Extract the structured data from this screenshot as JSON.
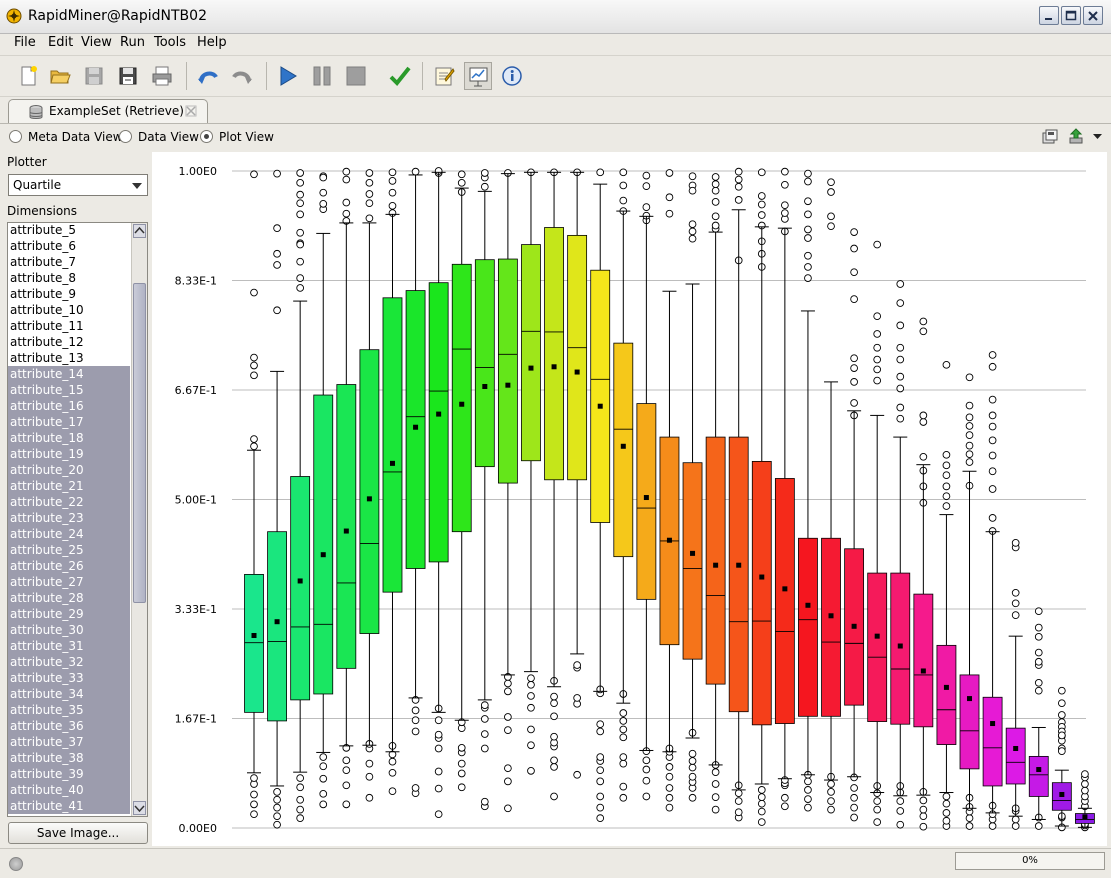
{
  "window": {
    "title": "RapidMiner@RapidNTB02"
  },
  "menu": [
    "File",
    "Edit",
    "View",
    "Run",
    "Tools",
    "Help"
  ],
  "toolbar": {
    "icons": [
      "new-process-icon",
      "open-icon",
      "save-icon",
      "save-as-icon",
      "print-icon",
      "undo-icon",
      "redo-icon",
      "run-icon",
      "pause-icon",
      "stop-icon",
      "validate-icon",
      "design-perspective-icon",
      "result-perspective-icon",
      "info-icon"
    ]
  },
  "tab": {
    "label": "ExampleSet (Retrieve)"
  },
  "views": [
    {
      "label": "Meta Data View",
      "selected": false
    },
    {
      "label": "Data View",
      "selected": false
    },
    {
      "label": "Plot View",
      "selected": true
    }
  ],
  "left": {
    "plotter_label": "Plotter",
    "plotter_value": "Quartile",
    "dimensions_label": "Dimensions",
    "dimensions": [
      {
        "name": "attribute_5",
        "selected": false
      },
      {
        "name": "attribute_6",
        "selected": false
      },
      {
        "name": "attribute_7",
        "selected": false
      },
      {
        "name": "attribute_8",
        "selected": false
      },
      {
        "name": "attribute_9",
        "selected": false
      },
      {
        "name": "attribute_10",
        "selected": false
      },
      {
        "name": "attribute_11",
        "selected": false
      },
      {
        "name": "attribute_12",
        "selected": false
      },
      {
        "name": "attribute_13",
        "selected": false
      },
      {
        "name": "attribute_14",
        "selected": true
      },
      {
        "name": "attribute_15",
        "selected": true
      },
      {
        "name": "attribute_16",
        "selected": true
      },
      {
        "name": "attribute_17",
        "selected": true
      },
      {
        "name": "attribute_18",
        "selected": true
      },
      {
        "name": "attribute_19",
        "selected": true
      },
      {
        "name": "attribute_20",
        "selected": true
      },
      {
        "name": "attribute_21",
        "selected": true
      },
      {
        "name": "attribute_22",
        "selected": true
      },
      {
        "name": "attribute_23",
        "selected": true
      },
      {
        "name": "attribute_24",
        "selected": true
      },
      {
        "name": "attribute_25",
        "selected": true
      },
      {
        "name": "attribute_26",
        "selected": true
      },
      {
        "name": "attribute_27",
        "selected": true
      },
      {
        "name": "attribute_28",
        "selected": true
      },
      {
        "name": "attribute_29",
        "selected": true
      },
      {
        "name": "attribute_30",
        "selected": true
      },
      {
        "name": "attribute_31",
        "selected": true
      },
      {
        "name": "attribute_32",
        "selected": true
      },
      {
        "name": "attribute_33",
        "selected": true
      },
      {
        "name": "attribute_34",
        "selected": true
      },
      {
        "name": "attribute_35",
        "selected": true
      },
      {
        "name": "attribute_36",
        "selected": true
      },
      {
        "name": "attribute_37",
        "selected": true
      },
      {
        "name": "attribute_38",
        "selected": true
      },
      {
        "name": "attribute_39",
        "selected": true
      },
      {
        "name": "attribute_40",
        "selected": true
      },
      {
        "name": "attribute_41",
        "selected": true
      }
    ],
    "save_button": "Save Image..."
  },
  "status": {
    "progress_text": "0%",
    "progress": 0
  },
  "chart_data": {
    "type": "box",
    "ytick_labels": [
      "1.00E0",
      "8.33E-1",
      "6.67E-1",
      "5.00E-1",
      "3.33E-1",
      "1.67E-1",
      "0.00E0"
    ],
    "ylim": [
      0,
      1
    ],
    "grid": true,
    "boxes": [
      {
        "q1": 0.176,
        "median": 0.282,
        "q3": 0.386,
        "mean": 0.293,
        "wlo": 0.084,
        "whi": 0.575,
        "color": "#1ae68c",
        "out": [
          0.021,
          0.036,
          0.051,
          0.067,
          0.076,
          0.581,
          0.592,
          0.689,
          0.704,
          0.716,
          0.815,
          0.995
        ]
      },
      {
        "q1": 0.163,
        "median": 0.284,
        "q3": 0.451,
        "mean": 0.314,
        "wlo": 0.064,
        "whi": 0.695,
        "color": "#1ae67e",
        "out": [
          0.005,
          0.018,
          0.031,
          0.043,
          0.055,
          0.788,
          0.857,
          0.874,
          0.913,
          0.996
        ]
      },
      {
        "q1": 0.195,
        "median": 0.306,
        "q3": 0.535,
        "mean": 0.376,
        "wlo": 0.085,
        "whi": 0.802,
        "color": "#1ae670",
        "out": [
          0.015,
          0.028,
          0.043,
          0.062,
          0.076,
          0.89,
          0.822,
          0.837,
          0.862,
          0.888,
          0.906,
          0.934,
          0.951,
          0.964,
          0.982,
          0.997
        ]
      },
      {
        "q1": 0.204,
        "median": 0.31,
        "q3": 0.659,
        "mean": 0.416,
        "wlo": 0.115,
        "whi": 0.905,
        "color": "#1ae662",
        "out": [
          0.036,
          0.052,
          0.075,
          0.094,
          0.108,
          0.942,
          0.95,
          0.967,
          0.992,
          0.99
        ]
      },
      {
        "q1": 0.243,
        "median": 0.373,
        "q3": 0.675,
        "mean": 0.452,
        "wlo": 0.125,
        "whi": 0.921,
        "color": "#1ae654",
        "out": [
          0.036,
          0.065,
          0.088,
          0.103,
          0.122,
          0.924,
          0.935,
          0.952,
          0.987,
          0.999
        ]
      },
      {
        "q1": 0.296,
        "median": 0.433,
        "q3": 0.728,
        "mean": 0.501,
        "wlo": 0.126,
        "whi": 0.921,
        "color": "#1ae646",
        "out": [
          0.046,
          0.078,
          0.098,
          0.121,
          0.128,
          0.928,
          0.951,
          0.965,
          0.982,
          0.997
        ]
      },
      {
        "q1": 0.359,
        "median": 0.542,
        "q3": 0.807,
        "mean": 0.555,
        "wlo": 0.116,
        "whi": 0.934,
        "color": "#1ae638",
        "out": [
          0.056,
          0.084,
          0.101,
          0.112,
          0.125,
          0.936,
          0.947,
          0.967,
          0.985,
          0.998
        ]
      },
      {
        "q1": 0.395,
        "median": 0.626,
        "q3": 0.818,
        "mean": 0.61,
        "wlo": 0.198,
        "whi": 0.994,
        "color": "#1ae62a",
        "out": [
          0.053,
          0.061,
          0.147,
          0.164,
          0.179,
          0.195,
          0.999
        ]
      },
      {
        "q1": 0.405,
        "median": 0.665,
        "q3": 0.83,
        "mean": 0.63,
        "wlo": 0.176,
        "whi": 0.998,
        "color": "#1ae61c",
        "out": [
          0.021,
          0.06,
          0.086,
          0.121,
          0.137,
          0.142,
          0.164,
          0.182,
          0.997,
          1.0
        ]
      },
      {
        "q1": 0.451,
        "median": 0.729,
        "q3": 0.858,
        "mean": 0.645,
        "wlo": 0.164,
        "whi": 0.974,
        "color": "#2ee61a",
        "out": [
          0.062,
          0.083,
          0.098,
          0.115,
          0.122,
          0.152,
          0.161,
          0.968,
          0.982,
          0.995
        ]
      },
      {
        "q1": 0.55,
        "median": 0.701,
        "q3": 0.865,
        "mean": 0.672,
        "wlo": 0.195,
        "whi": 0.969,
        "color": "#49e61a",
        "out": [
          0.033,
          0.04,
          0.121,
          0.143,
          0.166,
          0.183,
          0.187,
          0.976,
          0.99,
          0.997
        ]
      },
      {
        "q1": 0.525,
        "median": 0.721,
        "q3": 0.866,
        "mean": 0.674,
        "wlo": 0.233,
        "whi": 0.996,
        "color": "#64e61a",
        "out": [
          0.03,
          0.071,
          0.091,
          0.149,
          0.169,
          0.208,
          0.22,
          0.23,
          0.997
        ]
      },
      {
        "q1": 0.559,
        "median": 0.756,
        "q3": 0.888,
        "mean": 0.7,
        "wlo": 0.238,
        "whi": 0.998,
        "color": "#9ee61a",
        "out": [
          0.087,
          0.126,
          0.15,
          0.183,
          0.201,
          0.218,
          0.228,
          0.998
        ]
      },
      {
        "q1": 0.53,
        "median": 0.755,
        "q3": 0.914,
        "mean": 0.702,
        "wlo": 0.215,
        "whi": 0.998,
        "color": "#c4e61a",
        "out": [
          0.048,
          0.093,
          0.103,
          0.124,
          0.13,
          0.139,
          0.17,
          0.19,
          0.2,
          0.224,
          0.998
        ]
      },
      {
        "q1": 0.53,
        "median": 0.731,
        "q3": 0.902,
        "mean": 0.694,
        "wlo": 0.265,
        "whi": 0.998,
        "color": "#e0e61a",
        "out": [
          0.081,
          0.189,
          0.198,
          0.244,
          0.248,
          0.998
        ]
      },
      {
        "q1": 0.465,
        "median": 0.683,
        "q3": 0.849,
        "mean": 0.642,
        "wlo": 0.208,
        "whi": 0.98,
        "color": "#f5e61a",
        "out": [
          0.015,
          0.031,
          0.048,
          0.071,
          0.088,
          0.102,
          0.108,
          0.147,
          0.158,
          0.205,
          0.211,
          0.998
        ]
      },
      {
        "q1": 0.413,
        "median": 0.607,
        "q3": 0.738,
        "mean": 0.581,
        "wlo": 0.19,
        "whi": 0.939,
        "color": "#f5c81a",
        "out": [
          0.046,
          0.063,
          0.098,
          0.108,
          0.138,
          0.15,
          0.163,
          0.175,
          0.204,
          0.939,
          0.955,
          0.978,
          0.998
        ]
      },
      {
        "q1": 0.348,
        "median": 0.487,
        "q3": 0.646,
        "mean": 0.503,
        "wlo": 0.118,
        "whi": 0.931,
        "color": "#f5aa1a",
        "out": [
          0.048,
          0.072,
          0.089,
          0.103,
          0.117,
          0.925,
          0.932,
          0.945,
          0.977,
          0.993
        ]
      },
      {
        "q1": 0.279,
        "median": 0.437,
        "q3": 0.595,
        "mean": 0.438,
        "wlo": 0.116,
        "whi": 0.817,
        "color": "#f58c1a",
        "out": [
          0.031,
          0.046,
          0.061,
          0.078,
          0.093,
          0.108,
          0.116,
          0.121,
          0.935,
          0.96,
          0.997
        ]
      },
      {
        "q1": 0.257,
        "median": 0.395,
        "q3": 0.556,
        "mean": 0.418,
        "wlo": 0.137,
        "whi": 0.828,
        "color": "#f5741a",
        "out": [
          0.046,
          0.061,
          0.07,
          0.078,
          0.092,
          0.102,
          0.113,
          0.145,
          0.978,
          0.897,
          0.908,
          0.919,
          0.97,
          0.992
        ]
      },
      {
        "q1": 0.219,
        "median": 0.354,
        "q3": 0.595,
        "mean": 0.4,
        "wlo": 0.096,
        "whi": 0.907,
        "color": "#f5641a",
        "out": [
          0.028,
          0.047,
          0.067,
          0.085,
          0.096,
          0.912,
          0.917,
          0.931,
          0.953,
          0.97,
          0.98,
          0.991
        ]
      },
      {
        "q1": 0.177,
        "median": 0.314,
        "q3": 0.595,
        "mean": 0.4,
        "wlo": 0.058,
        "whi": 0.941,
        "color": "#f5551a",
        "out": [
          0.016,
          0.024,
          0.041,
          0.053,
          0.065,
          0.864,
          0.956,
          0.976,
          0.987,
          0.999
        ]
      },
      {
        "q1": 0.157,
        "median": 0.315,
        "q3": 0.558,
        "mean": 0.382,
        "wlo": 0.067,
        "whi": 0.915,
        "color": "#f53f1a",
        "out": [
          0.009,
          0.025,
          0.037,
          0.047,
          0.058,
          0.854,
          0.874,
          0.893,
          0.917,
          0.933,
          0.949,
          0.962,
          0.998
        ]
      },
      {
        "q1": 0.159,
        "median": 0.299,
        "q3": 0.532,
        "mean": 0.364,
        "wlo": 0.075,
        "whi": 0.913,
        "color": "#f52a1a",
        "out": [
          0.033,
          0.046,
          0.065,
          0.068,
          0.073,
          0.908,
          0.927,
          0.936,
          0.948,
          0.979,
          0.999
        ]
      },
      {
        "q1": 0.17,
        "median": 0.317,
        "q3": 0.441,
        "mean": 0.339,
        "wlo": 0.081,
        "whi": 0.787,
        "color": "#f5161f",
        "out": [
          0.031,
          0.044,
          0.058,
          0.071,
          0.081,
          0.837,
          0.854,
          0.871,
          0.898,
          0.911,
          0.934,
          0.954,
          0.984,
          0.996
        ]
      },
      {
        "q1": 0.17,
        "median": 0.283,
        "q3": 0.441,
        "mean": 0.323,
        "wlo": 0.073,
        "whi": 0.679,
        "color": "#f51a32",
        "out": [
          0.028,
          0.041,
          0.055,
          0.067,
          0.078,
          0.916,
          0.931,
          0.968,
          0.983
        ]
      },
      {
        "q1": 0.187,
        "median": 0.281,
        "q3": 0.425,
        "mean": 0.307,
        "wlo": 0.078,
        "whi": 0.635,
        "color": "#f51a46",
        "out": [
          0.016,
          0.031,
          0.046,
          0.061,
          0.077,
          0.628,
          0.647,
          0.679,
          0.7,
          0.715,
          0.805,
          0.846,
          0.882,
          0.907
        ]
      },
      {
        "q1": 0.162,
        "median": 0.26,
        "q3": 0.388,
        "mean": 0.292,
        "wlo": 0.054,
        "whi": 0.628,
        "color": "#f51a5a",
        "out": [
          0.009,
          0.028,
          0.041,
          0.053,
          0.064,
          0.681,
          0.698,
          0.713,
          0.731,
          0.752,
          0.779,
          0.888
        ]
      },
      {
        "q1": 0.158,
        "median": 0.242,
        "q3": 0.388,
        "mean": 0.277,
        "wlo": 0.049,
        "whi": 0.595,
        "color": "#f51a70",
        "out": [
          0.005,
          0.026,
          0.041,
          0.054,
          0.064,
          0.623,
          0.64,
          0.669,
          0.687,
          0.713,
          0.731,
          0.765,
          0.799,
          0.828
        ]
      },
      {
        "q1": 0.154,
        "median": 0.233,
        "q3": 0.356,
        "mean": 0.239,
        "wlo": 0.05,
        "whi": 0.553,
        "color": "#f51a8c",
        "out": [
          0.002,
          0.018,
          0.028,
          0.042,
          0.055,
          0.495,
          0.52,
          0.544,
          0.565,
          0.618,
          0.628,
          0.756,
          0.771
        ]
      },
      {
        "q1": 0.127,
        "median": 0.18,
        "q3": 0.278,
        "mean": 0.214,
        "wlo": 0.054,
        "whi": 0.477,
        "color": "#f01aa5",
        "out": [
          0.003,
          0.011,
          0.023,
          0.037,
          0.048,
          0.49,
          0.505,
          0.52,
          0.537,
          0.552,
          0.568,
          0.705
        ]
      },
      {
        "q1": 0.09,
        "median": 0.148,
        "q3": 0.233,
        "mean": 0.197,
        "wlo": 0.03,
        "whi": 0.543,
        "color": "#e61ac3",
        "out": [
          0.003,
          0.015,
          0.025,
          0.032,
          0.046,
          0.521,
          0.557,
          0.569,
          0.582,
          0.598,
          0.612,
          0.625,
          0.643,
          0.686
        ]
      },
      {
        "q1": 0.064,
        "median": 0.122,
        "q3": 0.199,
        "mean": 0.159,
        "wlo": 0.023,
        "whi": 0.451,
        "color": "#e61ad5",
        "out": [
          0.003,
          0.013,
          0.021,
          0.034,
          0.452,
          0.472,
          0.516,
          0.543,
          0.567,
          0.59,
          0.611,
          0.628,
          0.652,
          0.702,
          0.72
        ]
      },
      {
        "q1": 0.067,
        "median": 0.1,
        "q3": 0.152,
        "mean": 0.121,
        "wlo": 0.018,
        "whi": 0.292,
        "color": "#dc1ae6",
        "out": [
          0.003,
          0.013,
          0.026,
          0.03,
          0.427,
          0.434,
          0.324,
          0.342,
          0.358
        ]
      },
      {
        "q1": 0.048,
        "median": 0.081,
        "q3": 0.109,
        "mean": 0.089,
        "wlo": 0.013,
        "whi": 0.153,
        "color": "#c51ae6",
        "out": [
          0.003,
          0.016,
          0.209,
          0.221,
          0.248,
          0.253,
          0.267,
          0.291,
          0.305,
          0.33
        ]
      },
      {
        "q1": 0.027,
        "median": 0.042,
        "q3": 0.069,
        "mean": 0.051,
        "wlo": 0.003,
        "whi": 0.088,
        "color": "#a01ae6",
        "out": [
          0.001,
          0.016,
          0.018,
          0.19,
          0.172,
          0.161,
          0.154,
          0.147,
          0.14,
          0.133,
          0.121,
          0.141,
          0.117,
          0.209
        ]
      },
      {
        "q1": 0.007,
        "median": 0.013,
        "q3": 0.022,
        "mean": 0.017,
        "wlo": 0.001,
        "whi": 0.03,
        "color": "#8c1ae6",
        "out": [
          0.001,
          0.004,
          0.006,
          0.033,
          0.041,
          0.048,
          0.057,
          0.067,
          0.077,
          0.082
        ]
      }
    ]
  }
}
